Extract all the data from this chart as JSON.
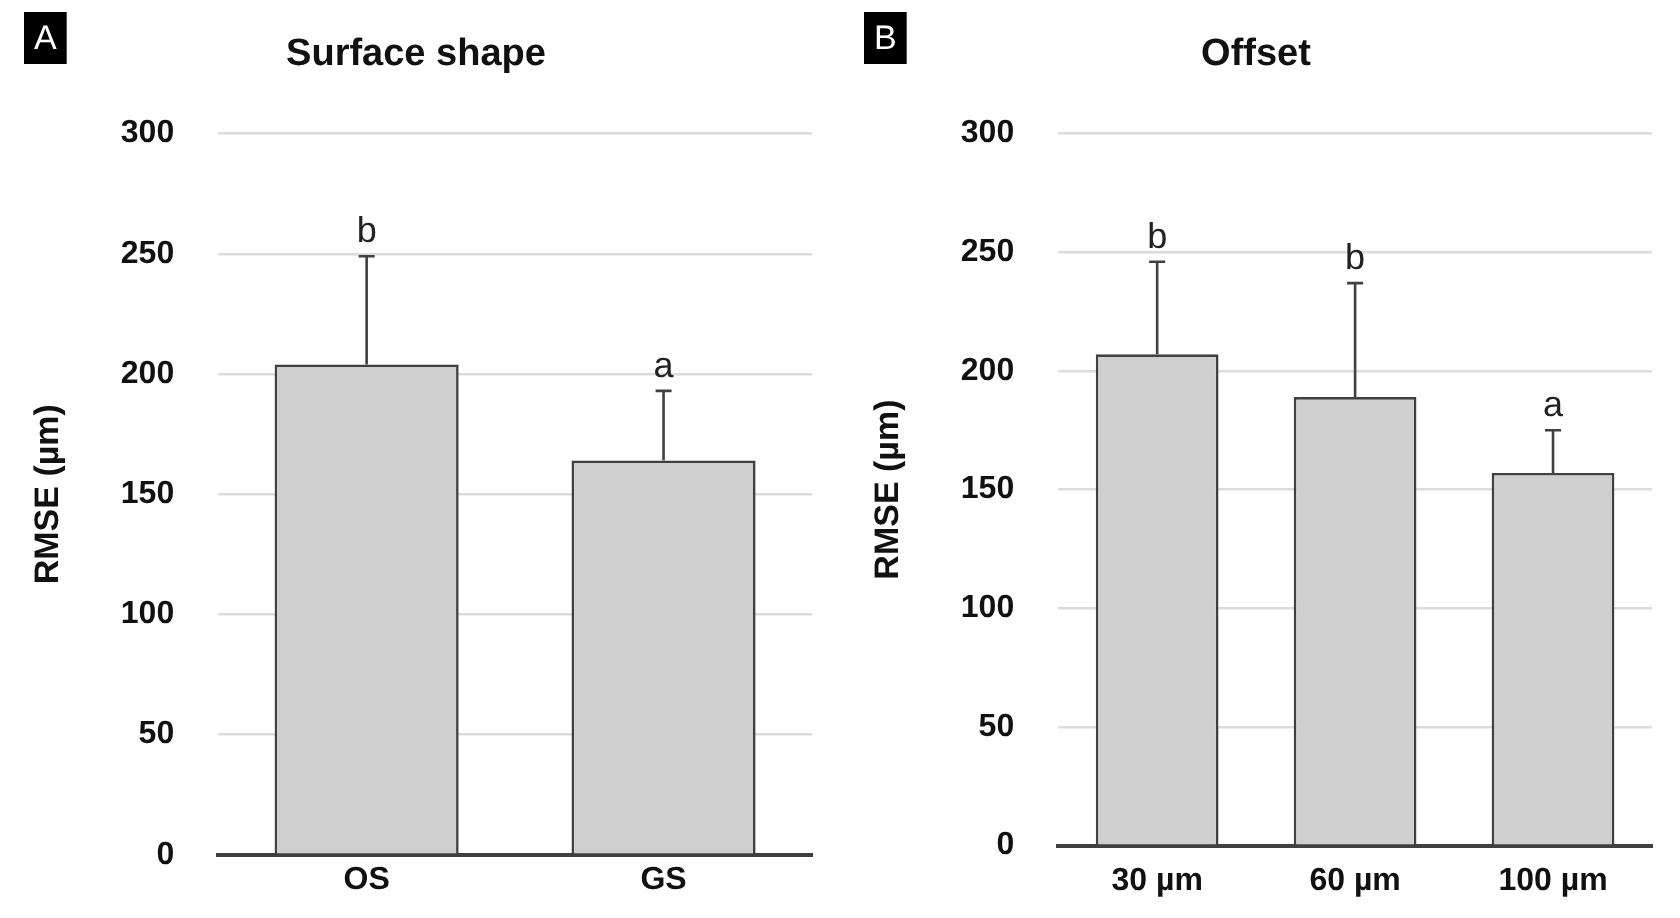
{
  "chart_data": [
    {
      "type": "bar",
      "title": "Surface shape",
      "ylabel": "RMSE (µm)",
      "categories": [
        "OS",
        "GS"
      ],
      "values": [
        204,
        164
      ],
      "color": "#d0cfcf",
      "errors": [
        [
          204,
          249
        ],
        [
          164,
          193
        ]
      ],
      "ylim": [
        0,
        300
      ],
      "yticks": [
        0,
        50,
        100,
        150,
        200,
        250,
        300
      ],
      "grid": "y",
      "legend": false,
      "annotations": [
        "A",
        {
          "text": "b",
          "x": "OS",
          "y": 249
        },
        {
          "text": "a",
          "x": "GS",
          "y": 193
        }
      ]
    },
    {
      "type": "bar",
      "title": "Offset",
      "ylabel": "RMSE (µm)",
      "categories": [
        "30 µm",
        "60 µm",
        "100 µm"
      ],
      "values": [
        207,
        189,
        157
      ],
      "color": "#d0cfcf",
      "errors": [
        [
          207,
          246
        ],
        [
          189,
          237
        ],
        [
          157,
          175
        ]
      ],
      "ylim": [
        0,
        300
      ],
      "yticks": [
        0,
        50,
        100,
        150,
        200,
        250,
        300
      ],
      "grid": "y",
      "legend": false,
      "annotations": [
        "B",
        {
          "text": "b",
          "x": "30 µm",
          "y": 246
        },
        {
          "text": "b",
          "x": "60 µm",
          "y": 237
        },
        {
          "text": "a",
          "x": "100 µm",
          "y": 175
        }
      ]
    }
  ]
}
